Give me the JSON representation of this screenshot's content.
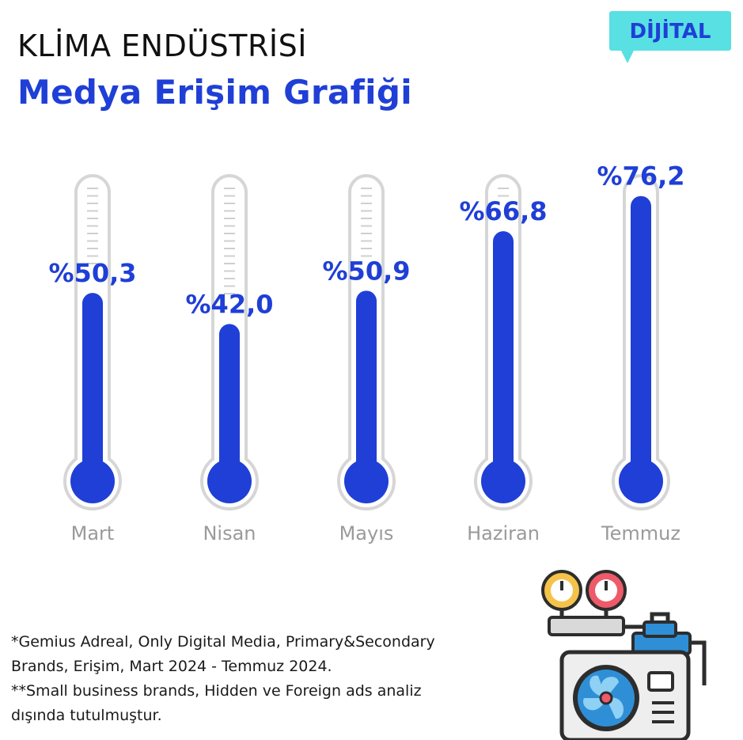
{
  "header": {
    "title": "KLİMA ENDÜSTRİSİ",
    "subtitle": "Medya Erişim Grafiği",
    "badge": "DİJİTAL"
  },
  "colors": {
    "accent": "#1f3fd6",
    "badge_bg": "#59e0e3",
    "tube_outline": "#d6d6d6",
    "month_label": "#9a9a9a"
  },
  "chart_data": {
    "type": "bar",
    "style": "thermometer",
    "categories": [
      "Mart",
      "Nisan",
      "Mayıs",
      "Haziran",
      "Temmuz"
    ],
    "values": [
      50.3,
      42.0,
      50.9,
      66.8,
      76.2
    ],
    "value_labels": [
      "%50,3",
      "%42,0",
      "%50,9",
      "%66,8",
      "%76,2"
    ],
    "unit": "%",
    "ylim": [
      0,
      80
    ]
  },
  "footnotes": [
    "*Gemius Adreal, Only Digital Media, Primary&Secondary",
    "Brands, Erişim, Mart 2024 - Temmuz 2024.",
    "**Small business brands, Hidden ve Foreign ads analiz",
    "dışında tutulmuştur."
  ],
  "illustration_icon": "air-conditioner-outdoor-unit-with-pressure-gauges-icon"
}
